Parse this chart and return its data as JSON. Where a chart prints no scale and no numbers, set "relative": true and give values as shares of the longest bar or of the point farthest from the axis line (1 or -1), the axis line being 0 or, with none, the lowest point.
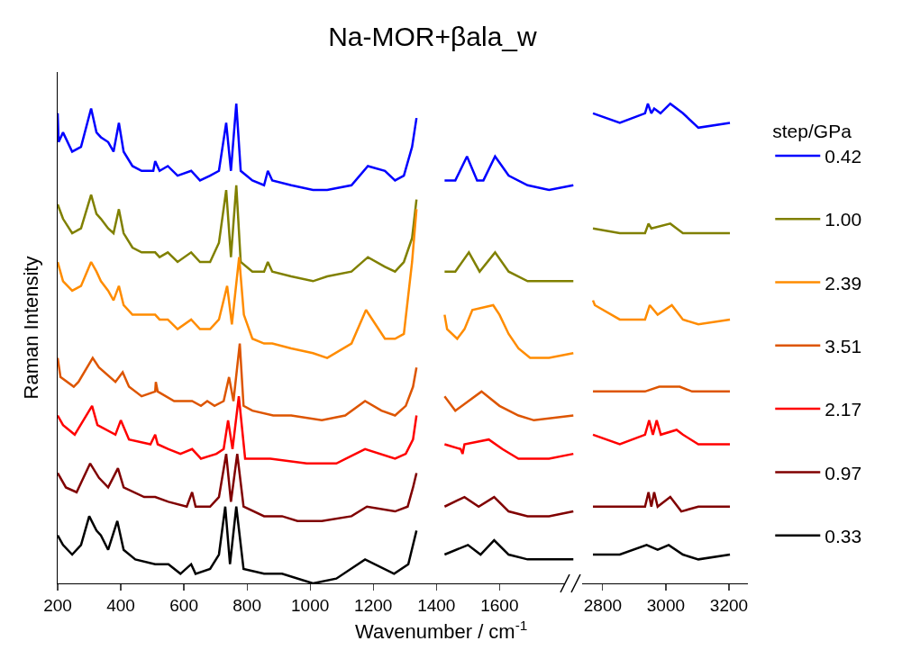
{
  "chart_data": [
    {
      "type": "line",
      "title": "Na-MOR+βala_w",
      "xlabel": "Wavenumber / cm$^{-1}$",
      "ylabel": "Raman Intensity",
      "relative": true,
      "tick_labels": "x",
      "xlim": [
        200,
        1845
      ],
      "xticks": [
        200,
        400,
        600,
        800,
        1000,
        1200,
        1400,
        1600
      ],
      "grid": false,
      "legend": false,
      "series": [
        {
          "color": "#0000ff",
          "x": [
            200,
            203,
            217,
            246,
            274,
            306,
            323,
            337,
            360,
            377,
            394,
            409,
            437,
            466,
            503,
            509,
            523,
            549,
            580,
            623,
            651,
            683,
            711,
            734,
            749,
            766,
            780,
            817,
            854,
            866,
            880,
            940,
            1009,
            1054,
            1131,
            1183,
            1237,
            1269,
            1297,
            1323,
            1337,
            1380,
            1426,
            1440,
            1460,
            1497,
            1529,
            1549,
            1586,
            1629,
            1689,
            1757,
            1834
          ],
          "values": [
            0.98,
            0.92,
            0.94,
            0.9,
            0.91,
            0.99,
            0.94,
            0.93,
            0.92,
            0.9,
            0.96,
            0.9,
            0.87,
            0.86,
            0.86,
            0.88,
            0.86,
            0.87,
            0.85,
            0.86,
            0.84,
            0.85,
            0.86,
            0.96,
            0.86,
            1.0,
            0.86,
            0.84,
            0.83,
            0.86,
            0.84,
            0.83,
            0.82,
            0.82,
            0.83,
            0.87,
            0.86,
            0.84,
            0.85,
            0.91,
            0.97,
            null,
            0.84,
            0.84,
            0.84,
            0.89,
            0.84,
            0.84,
            0.89,
            0.85,
            0.83,
            0.82,
            0.83
          ]
        },
        {
          "color": "#808000",
          "x": [
            200,
            217,
            246,
            274,
            306,
            323,
            337,
            360,
            377,
            394,
            409,
            437,
            466,
            509,
            523,
            549,
            580,
            623,
            651,
            683,
            711,
            734,
            749,
            766,
            780,
            817,
            854,
            866,
            880,
            940,
            1009,
            1054,
            1131,
            1183,
            1237,
            1269,
            1297,
            1323,
            1337,
            1380,
            1426,
            1460,
            1503,
            1537,
            1586,
            1629,
            1689,
            1757,
            1834
          ],
          "values": [
            0.79,
            0.76,
            0.73,
            0.74,
            0.81,
            0.77,
            0.76,
            0.74,
            0.73,
            0.78,
            0.73,
            0.7,
            0.69,
            0.69,
            0.68,
            0.69,
            0.67,
            0.69,
            0.67,
            0.67,
            0.71,
            0.82,
            0.68,
            0.83,
            0.67,
            0.65,
            0.65,
            0.67,
            0.65,
            0.64,
            0.63,
            0.64,
            0.65,
            0.68,
            0.66,
            0.65,
            0.67,
            0.72,
            0.8,
            null,
            0.65,
            0.65,
            0.69,
            0.65,
            0.69,
            0.65,
            0.63,
            0.63,
            0.63
          ]
        },
        {
          "color": "#ff8c00",
          "x": [
            200,
            217,
            246,
            274,
            306,
            323,
            337,
            360,
            377,
            394,
            409,
            437,
            466,
            509,
            523,
            549,
            580,
            623,
            651,
            683,
            711,
            737,
            752,
            775,
            790,
            817,
            854,
            880,
            940,
            1009,
            1054,
            1131,
            1177,
            1237,
            1269,
            1297,
            1323,
            1337,
            1380,
            1426,
            1434,
            1466,
            1489,
            1514,
            1580,
            1600,
            1629,
            1660,
            1697,
            1757,
            1834
          ],
          "values": [
            0.67,
            0.63,
            0.61,
            0.62,
            0.67,
            0.65,
            0.63,
            0.61,
            0.59,
            0.62,
            0.58,
            0.56,
            0.56,
            0.56,
            0.55,
            0.55,
            0.53,
            0.55,
            0.53,
            0.53,
            0.55,
            0.62,
            0.54,
            0.68,
            0.56,
            0.51,
            0.5,
            0.5,
            0.49,
            0.48,
            0.47,
            0.5,
            0.57,
            0.51,
            0.51,
            0.52,
            0.67,
            0.78,
            null,
            0.56,
            0.53,
            0.51,
            0.53,
            0.57,
            0.58,
            0.56,
            0.52,
            0.49,
            0.47,
            0.47,
            0.48
          ]
        },
        {
          "color": "#dd5500",
          "x": [
            200,
            209,
            251,
            266,
            311,
            331,
            383,
            406,
            426,
            466,
            509,
            511,
            517,
            569,
            626,
            654,
            674,
            697,
            726,
            743,
            757,
            777,
            789,
            817,
            883,
            940,
            1037,
            1111,
            1174,
            1226,
            1269,
            1303,
            1326,
            1337,
            1380,
            1426,
            1460,
            1543,
            1600,
            1660,
            1709,
            1834
          ],
          "values": [
            0.47,
            0.43,
            0.41,
            0.42,
            0.47,
            0.45,
            0.42,
            0.44,
            0.41,
            0.39,
            0.4,
            0.42,
            0.4,
            0.38,
            0.38,
            0.37,
            0.38,
            0.37,
            0.38,
            0.43,
            0.38,
            0.5,
            0.37,
            0.36,
            0.35,
            0.35,
            0.34,
            0.35,
            0.38,
            0.36,
            0.35,
            0.37,
            0.41,
            0.45,
            null,
            0.39,
            0.36,
            0.4,
            0.37,
            0.35,
            0.34,
            0.35
          ]
        },
        {
          "color": "#ff0000",
          "x": [
            200,
            217,
            254,
            309,
            326,
            383,
            400,
            426,
            494,
            509,
            517,
            551,
            589,
            626,
            654,
            703,
            726,
            740,
            754,
            774,
            794,
            837,
            874,
            989,
            1083,
            1174,
            1269,
            1303,
            1326,
            1337,
            1380,
            1426,
            1477,
            1483,
            1489,
            1566,
            1609,
            1660,
            1757,
            1834
          ],
          "values": [
            0.35,
            0.33,
            0.31,
            0.37,
            0.33,
            0.31,
            0.34,
            0.3,
            0.29,
            0.31,
            0.29,
            0.28,
            0.27,
            0.28,
            0.26,
            0.27,
            0.28,
            0.34,
            0.28,
            0.39,
            0.26,
            0.26,
            0.26,
            0.25,
            0.25,
            0.28,
            0.26,
            0.27,
            0.3,
            0.35,
            null,
            0.29,
            0.28,
            0.27,
            0.29,
            0.3,
            0.28,
            0.26,
            0.26,
            0.27
          ]
        },
        {
          "color": "#800000",
          "x": [
            200,
            226,
            260,
            303,
            331,
            360,
            391,
            409,
            474,
            509,
            551,
            609,
            626,
            637,
            683,
            711,
            734,
            749,
            769,
            789,
            854,
            911,
            960,
            1037,
            1131,
            1180,
            1269,
            1309,
            1326,
            1337,
            1380,
            1426,
            1489,
            1534,
            1583,
            1629,
            1689,
            1757,
            1834
          ],
          "values": [
            0.23,
            0.2,
            0.19,
            0.25,
            0.22,
            0.2,
            0.24,
            0.2,
            0.18,
            0.18,
            0.17,
            0.16,
            0.19,
            0.16,
            0.16,
            0.18,
            0.27,
            0.17,
            0.27,
            0.16,
            0.14,
            0.14,
            0.13,
            0.13,
            0.14,
            0.16,
            0.15,
            0.16,
            0.2,
            0.23,
            null,
            0.16,
            0.18,
            0.16,
            0.18,
            0.15,
            0.14,
            0.14,
            0.15
          ]
        },
        {
          "color": "#000000",
          "x": [
            200,
            217,
            246,
            274,
            300,
            323,
            337,
            360,
            389,
            409,
            446,
            509,
            551,
            589,
            623,
            637,
            683,
            711,
            731,
            746,
            766,
            789,
            854,
            911,
            1009,
            1083,
            1174,
            1266,
            1311,
            1337,
            1380,
            1426,
            1500,
            1540,
            1583,
            1629,
            1689,
            1757,
            1834
          ],
          "values": [
            0.1,
            0.08,
            0.06,
            0.08,
            0.14,
            0.11,
            0.1,
            0.07,
            0.13,
            0.07,
            0.05,
            0.04,
            0.04,
            0.02,
            0.04,
            0.02,
            0.03,
            0.06,
            0.16,
            0.04,
            0.16,
            0.03,
            0.02,
            0.02,
            0.0,
            0.01,
            0.05,
            0.02,
            0.04,
            0.11,
            null,
            0.06,
            0.08,
            0.06,
            0.09,
            0.06,
            0.05,
            0.05,
            0.05
          ]
        }
      ]
    },
    {
      "type": "line",
      "relative": true,
      "tick_labels": "x",
      "xlim": [
        2735,
        3260
      ],
      "xticks": [
        2800,
        3000,
        3200
      ],
      "grid": false,
      "legend": "right",
      "legend_title": "step/GPa",
      "series": [
        {
          "name": "0.42",
          "color": "#0000ff",
          "x": [
            2769,
            2854,
            2934,
            2943,
            2954,
            2963,
            2983,
            3014,
            3054,
            3103,
            3203
          ],
          "values": [
            0.98,
            0.96,
            0.98,
            1.0,
            0.98,
            0.99,
            0.98,
            1.0,
            0.98,
            0.95,
            0.96
          ]
        },
        {
          "name": "1.00",
          "color": "#808000",
          "x": [
            2769,
            2854,
            2934,
            2945,
            2954,
            3014,
            3054,
            3103,
            3203
          ],
          "values": [
            0.74,
            0.73,
            0.73,
            0.75,
            0.74,
            0.75,
            0.73,
            0.73,
            0.73
          ]
        },
        {
          "name": "2.39",
          "color": "#ff8c00",
          "x": [
            2769,
            2775,
            2854,
            2934,
            2949,
            2974,
            3019,
            3054,
            3103,
            3203
          ],
          "values": [
            0.59,
            0.58,
            0.55,
            0.55,
            0.58,
            0.56,
            0.58,
            0.55,
            0.54,
            0.55
          ]
        },
        {
          "name": "3.51",
          "color": "#dd5500",
          "x": [
            2769,
            2854,
            2934,
            2979,
            3044,
            3083,
            3203
          ],
          "values": [
            0.4,
            0.4,
            0.4,
            0.41,
            0.41,
            0.4,
            0.4
          ]
        },
        {
          "name": "2.17",
          "color": "#ff0000",
          "x": [
            2769,
            2854,
            2934,
            2947,
            2959,
            2971,
            2984,
            3034,
            3054,
            3103,
            3203
          ],
          "values": [
            0.31,
            0.29,
            0.31,
            0.34,
            0.31,
            0.34,
            0.31,
            0.32,
            0.31,
            0.29,
            0.29
          ]
        },
        {
          "name": "0.97",
          "color": "#800000",
          "x": [
            2769,
            2854,
            2934,
            2945,
            2954,
            2963,
            2974,
            3014,
            3049,
            3103,
            3203
          ],
          "values": [
            0.16,
            0.16,
            0.16,
            0.19,
            0.16,
            0.19,
            0.16,
            0.18,
            0.15,
            0.16,
            0.16
          ]
        },
        {
          "name": "0.33",
          "color": "#000000",
          "x": [
            2769,
            2854,
            2939,
            2974,
            3009,
            3054,
            3103,
            3203
          ],
          "values": [
            0.06,
            0.06,
            0.08,
            0.07,
            0.08,
            0.06,
            0.05,
            0.06
          ]
        }
      ]
    }
  ]
}
